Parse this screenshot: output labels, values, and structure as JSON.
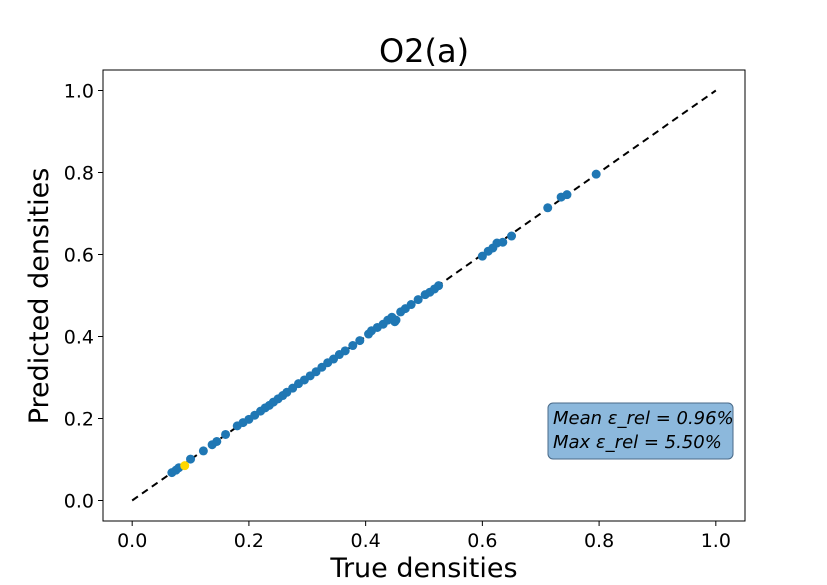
{
  "chart_data": {
    "type": "scatter",
    "title": "O2(a)",
    "xlabel": "True densities",
    "ylabel": "Predicted densities",
    "xlim": [
      -0.05,
      1.05
    ],
    "ylim": [
      -0.05,
      1.05
    ],
    "xticks": [
      "0.0",
      "0.2",
      "0.4",
      "0.6",
      "0.8",
      "1.0"
    ],
    "yticks": [
      "0.0",
      "0.2",
      "0.4",
      "0.6",
      "0.8",
      "1.0"
    ],
    "grid": false,
    "reference_line": {
      "style": "dashed",
      "color": "#000000",
      "from": [
        0.0,
        0.0
      ],
      "to": [
        1.0,
        1.0
      ]
    },
    "annotation": {
      "lines": [
        "Mean ε_rel = 0.96%",
        "Max ε_rel = 5.50%"
      ],
      "placement": "lower-right",
      "background": "#7fb0d8"
    },
    "series": [
      {
        "color": "#1f77b4",
        "points": [
          [
            0.068,
            0.068
          ],
          [
            0.075,
            0.074
          ],
          [
            0.08,
            0.08
          ],
          [
            0.1,
            0.101
          ],
          [
            0.122,
            0.121
          ],
          [
            0.137,
            0.136
          ],
          [
            0.145,
            0.144
          ],
          [
            0.16,
            0.161
          ],
          [
            0.18,
            0.182
          ],
          [
            0.19,
            0.19
          ],
          [
            0.2,
            0.198
          ],
          [
            0.21,
            0.208
          ],
          [
            0.22,
            0.218
          ],
          [
            0.228,
            0.226
          ],
          [
            0.235,
            0.232
          ],
          [
            0.242,
            0.24
          ],
          [
            0.25,
            0.248
          ],
          [
            0.258,
            0.256
          ],
          [
            0.265,
            0.264
          ],
          [
            0.275,
            0.274
          ],
          [
            0.285,
            0.285
          ],
          [
            0.295,
            0.294
          ],
          [
            0.305,
            0.304
          ],
          [
            0.315,
            0.314
          ],
          [
            0.325,
            0.325
          ],
          [
            0.335,
            0.336
          ],
          [
            0.345,
            0.345
          ],
          [
            0.355,
            0.356
          ],
          [
            0.365,
            0.365
          ],
          [
            0.378,
            0.378
          ],
          [
            0.39,
            0.39
          ],
          [
            0.405,
            0.406
          ],
          [
            0.41,
            0.414
          ],
          [
            0.42,
            0.422
          ],
          [
            0.43,
            0.43
          ],
          [
            0.438,
            0.44
          ],
          [
            0.445,
            0.447
          ],
          [
            0.45,
            0.436
          ],
          [
            0.452,
            0.44
          ],
          [
            0.46,
            0.46
          ],
          [
            0.468,
            0.468
          ],
          [
            0.478,
            0.478
          ],
          [
            0.49,
            0.49
          ],
          [
            0.502,
            0.502
          ],
          [
            0.51,
            0.508
          ],
          [
            0.518,
            0.516
          ],
          [
            0.525,
            0.524
          ],
          [
            0.6,
            0.596
          ],
          [
            0.61,
            0.608
          ],
          [
            0.618,
            0.616
          ],
          [
            0.625,
            0.628
          ],
          [
            0.635,
            0.63
          ],
          [
            0.65,
            0.645
          ],
          [
            0.712,
            0.714
          ],
          [
            0.735,
            0.74
          ],
          [
            0.745,
            0.746
          ],
          [
            0.795,
            0.796
          ]
        ]
      },
      {
        "color": "#ffd700",
        "points": [
          [
            0.09,
            0.085
          ]
        ]
      }
    ]
  }
}
